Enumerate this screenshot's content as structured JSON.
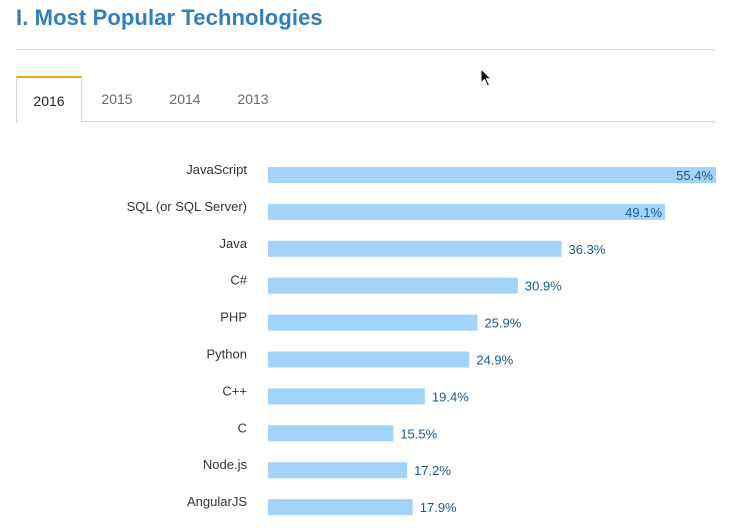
{
  "page": {
    "title": "I. Most Popular Technologies"
  },
  "tabs": [
    {
      "label": "2016",
      "active": true
    },
    {
      "label": "2015",
      "active": false
    },
    {
      "label": "2014",
      "active": false
    },
    {
      "label": "2013",
      "active": false
    }
  ],
  "colors": {
    "title": "#2f7fc0",
    "bar": "#a3d3fb",
    "value_text": "#1c5a86",
    "active_tab_border": "#f0a12a"
  },
  "chart_data": {
    "type": "bar",
    "orientation": "horizontal",
    "categories": [
      "JavaScript",
      "SQL (or SQL Server)",
      "Java",
      "C#",
      "PHP",
      "Python",
      "C++",
      "C",
      "Node.js",
      "AngularJS"
    ],
    "values": [
      55.4,
      49.1,
      36.3,
      30.9,
      25.9,
      24.9,
      19.4,
      15.5,
      17.2,
      17.9
    ],
    "value_suffix": "%",
    "xlim": [
      0,
      55.4
    ],
    "grid": false,
    "legend": "none"
  }
}
